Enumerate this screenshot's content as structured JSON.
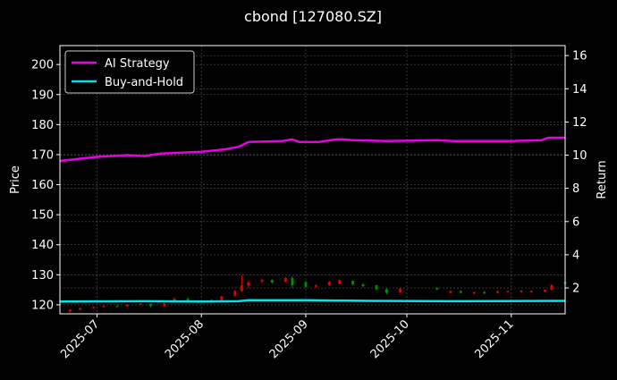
{
  "chart_data": {
    "type": "line",
    "title": "cbond [127080.SZ]",
    "ylabel": "Price",
    "ylabel_right": "Return",
    "xlim": [
      "2025-06-20",
      "2025-11-17"
    ],
    "ylim": [
      117.0,
      206.3
    ],
    "ylim_right": [
      0.44,
      16.6
    ],
    "x_ticks": [
      "2025-07-01",
      "2025-08-01",
      "2025-09-01",
      "2025-10-01",
      "2025-11-01"
    ],
    "x_tick_labels": [
      "2025-07",
      "2025-08",
      "2025-09",
      "2025-10",
      "2025-11"
    ],
    "y_ticks": [
      "120",
      "130",
      "140",
      "150",
      "160",
      "170",
      "180",
      "190",
      "200"
    ],
    "y_ticks_right": [
      "2",
      "4",
      "6",
      "8",
      "10",
      "12",
      "14",
      "16"
    ],
    "grid": true,
    "legend": {
      "placement": "top-left",
      "entries": [
        "AI Strategy",
        "Buy-and-Hold"
      ]
    },
    "colors": {
      "ai": "#e600e6",
      "bh": "#00e5e5",
      "up": "#e00000",
      "down": "#008a00"
    },
    "candles": [
      [
        "2025-06-23",
        117.8,
        118.6,
        117.5,
        118.4
      ],
      [
        "2025-06-26",
        118.4,
        119.0,
        118.2,
        118.9
      ],
      [
        "2025-06-30",
        118.9,
        119.5,
        118.7,
        119.3
      ],
      [
        "2025-07-03",
        119.3,
        119.8,
        119.0,
        119.6
      ],
      [
        "2025-07-07",
        119.6,
        120.0,
        119.2,
        119.4
      ],
      [
        "2025-07-10",
        119.5,
        120.3,
        119.3,
        120.1
      ],
      [
        "2025-07-14",
        120.1,
        120.6,
        119.9,
        120.4
      ],
      [
        "2025-07-17",
        120.4,
        120.5,
        119.0,
        119.6
      ],
      [
        "2025-07-21",
        119.6,
        120.8,
        119.4,
        120.5
      ],
      [
        "2025-07-24",
        121.0,
        122.5,
        120.9,
        122.0
      ],
      [
        "2025-07-28",
        122.0,
        122.4,
        121.2,
        121.4
      ],
      [
        "2025-07-31",
        121.4,
        121.6,
        120.5,
        120.8
      ],
      [
        "2025-08-04",
        120.8,
        121.8,
        120.6,
        121.6
      ],
      [
        "2025-08-07",
        121.6,
        123.0,
        121.4,
        122.8
      ],
      [
        "2025-08-11",
        123.0,
        125.0,
        122.8,
        124.6
      ],
      [
        "2025-08-13",
        124.6,
        130.0,
        124.2,
        126.5
      ],
      [
        "2025-08-15",
        126.5,
        128.0,
        125.5,
        127.5
      ],
      [
        "2025-08-19",
        127.8,
        128.8,
        127.2,
        128.3
      ],
      [
        "2025-08-22",
        128.3,
        128.5,
        127.0,
        127.4
      ],
      [
        "2025-08-26",
        127.8,
        129.3,
        127.5,
        128.9
      ],
      [
        "2025-08-28",
        128.9,
        129.5,
        125.5,
        126.5
      ],
      [
        "2025-09-01",
        127.5,
        128.0,
        125.5,
        126.0
      ],
      [
        "2025-09-04",
        126.0,
        126.8,
        125.5,
        126.5
      ],
      [
        "2025-09-08",
        126.5,
        128.0,
        126.3,
        127.6
      ],
      [
        "2025-09-11",
        127.0,
        128.4,
        126.8,
        128.2
      ],
      [
        "2025-09-15",
        128.0,
        128.0,
        126.5,
        126.8
      ],
      [
        "2025-09-18",
        126.8,
        127.2,
        125.8,
        126.2
      ],
      [
        "2025-09-22",
        126.5,
        126.7,
        124.8,
        125.2
      ],
      [
        "2025-09-25",
        125.2,
        125.6,
        123.5,
        124.0
      ],
      [
        "2025-09-29",
        124.2,
        125.8,
        124.0,
        125.4
      ],
      [
        "2025-10-10",
        125.6,
        125.8,
        124.9,
        125.1
      ],
      [
        "2025-10-14",
        124.0,
        124.8,
        123.8,
        124.6
      ],
      [
        "2025-10-17",
        124.6,
        124.9,
        123.8,
        124.0
      ],
      [
        "2025-10-21",
        123.8,
        124.3,
        123.5,
        124.2
      ],
      [
        "2025-10-24",
        124.2,
        124.6,
        123.6,
        123.8
      ],
      [
        "2025-10-28",
        124.0,
        124.8,
        123.8,
        124.5
      ],
      [
        "2025-10-31",
        124.2,
        124.8,
        124.0,
        124.6
      ],
      [
        "2025-11-04",
        124.3,
        124.9,
        124.0,
        124.7
      ],
      [
        "2025-11-07",
        124.2,
        124.8,
        124.0,
        124.6
      ],
      [
        "2025-11-11",
        124.4,
        125.2,
        124.2,
        125.0
      ],
      [
        "2025-11-13",
        125.0,
        126.8,
        124.8,
        126.5
      ],
      [
        "2025-11-17",
        127.6,
        127.8,
        126.5,
        126.9
      ]
    ],
    "series": [
      {
        "name": "AI Strategy",
        "axis": "right",
        "x": [
          "2025-06-20",
          "2025-07-01",
          "2025-07-10",
          "2025-07-15",
          "2025-07-20",
          "2025-08-01",
          "2025-08-08",
          "2025-08-12",
          "2025-08-15",
          "2025-08-25",
          "2025-08-28",
          "2025-08-30",
          "2025-09-05",
          "2025-09-10",
          "2025-09-12",
          "2025-09-15",
          "2025-09-25",
          "2025-10-10",
          "2025-10-15",
          "2025-10-18",
          "2025-11-01",
          "2025-11-10",
          "2025-11-12",
          "2025-11-17"
        ],
        "y": [
          9.65,
          9.9,
          10.0,
          9.95,
          10.1,
          10.2,
          10.35,
          10.5,
          10.8,
          10.85,
          10.95,
          10.8,
          10.8,
          10.95,
          10.95,
          10.9,
          10.85,
          10.9,
          10.85,
          10.85,
          10.85,
          10.9,
          11.05,
          11.05
        ]
      },
      {
        "name": "Buy-and-Hold",
        "axis": "right",
        "x": [
          "2025-06-20",
          "2025-07-15",
          "2025-08-01",
          "2025-08-12",
          "2025-08-15",
          "2025-09-01",
          "2025-09-20",
          "2025-10-15",
          "2025-11-17"
        ],
        "y": [
          1.18,
          1.2,
          1.18,
          1.2,
          1.26,
          1.26,
          1.22,
          1.2,
          1.22
        ]
      }
    ]
  }
}
